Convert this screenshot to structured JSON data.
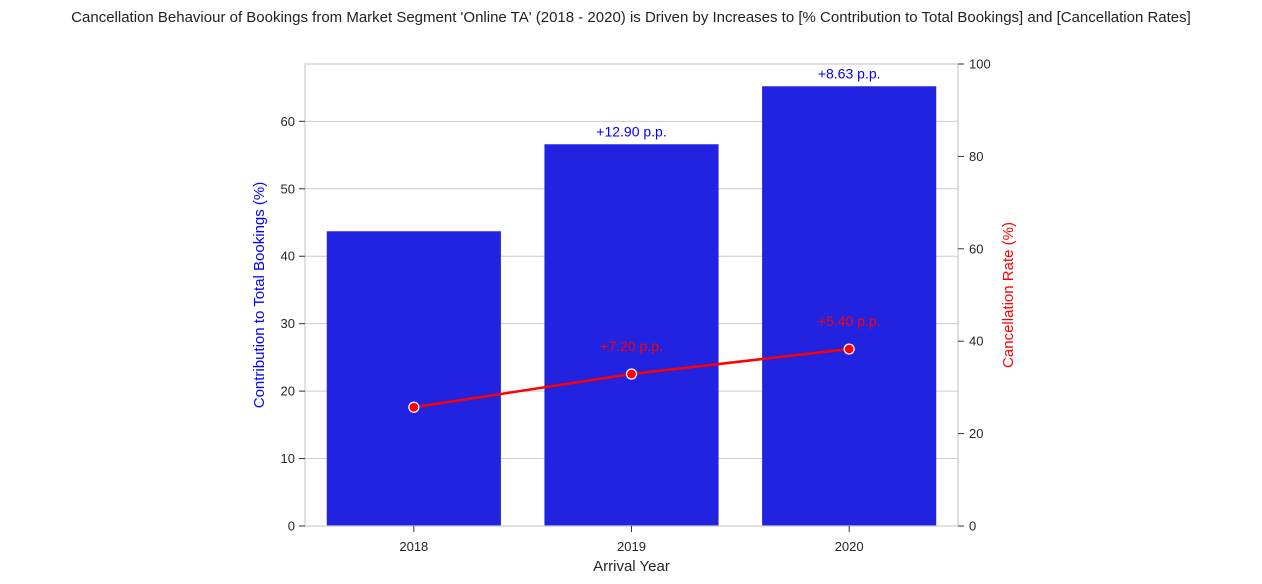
{
  "chart_data": {
    "type": "bar+line",
    "title": "Cancellation Behaviour of Bookings from Market Segment 'Online TA' (2018 - 2020) is Driven by Increases to [% Contribution to Total Bookings] and [Cancellation Rates]",
    "xlabel": "Arrival Year",
    "categories": [
      "2018",
      "2019",
      "2020"
    ],
    "bars": {
      "axis": "left",
      "ylabel": "Contribution to Total Bookings (%)",
      "values": [
        43.7,
        56.6,
        65.2
      ],
      "annotations": [
        "",
        "+12.90 p.p.",
        "+8.63 p.p."
      ],
      "color": "#2222e1",
      "annotation_color": "#0000ff"
    },
    "line": {
      "axis": "right",
      "ylabel": "Cancellation Rate (%)",
      "values": [
        25.7,
        32.9,
        38.3
      ],
      "annotations": [
        "",
        "+7.20 p.p.",
        "+5.40 p.p."
      ],
      "color": "#ff0000"
    },
    "left_axis": {
      "ylim": [
        0,
        68.5
      ],
      "ticks": [
        0,
        10,
        20,
        30,
        40,
        50,
        60
      ]
    },
    "right_axis": {
      "ylim": [
        0,
        100
      ],
      "ticks": [
        0,
        20,
        40,
        60,
        80,
        100
      ]
    },
    "grid": true,
    "legend": "none"
  }
}
